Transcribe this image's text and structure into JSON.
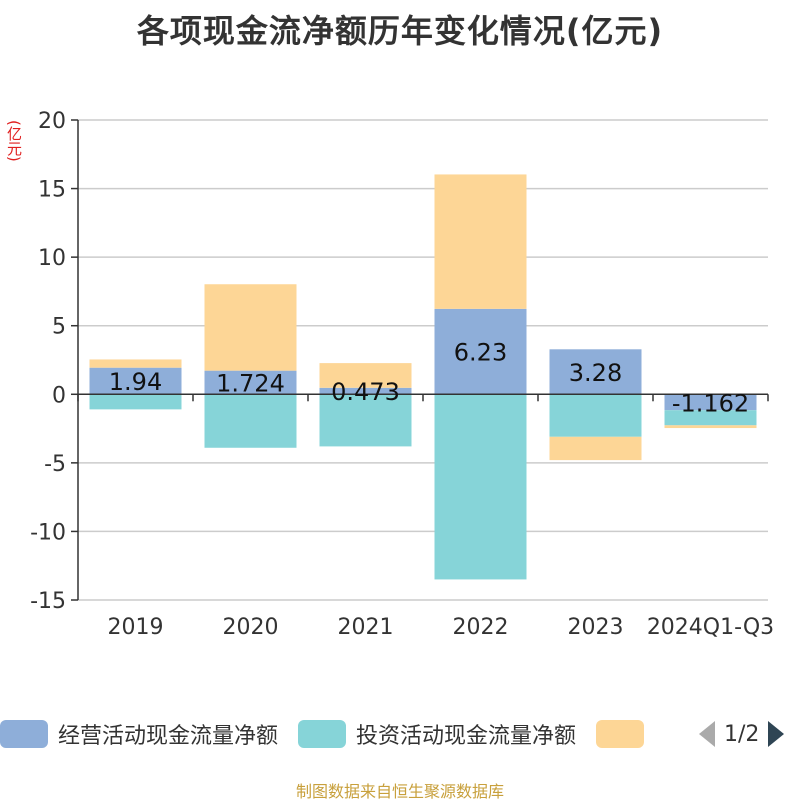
{
  "chart_data": {
    "type": "bar",
    "stacked": true,
    "title": "各项现金流净额历年变化情况(亿元)",
    "yunit": "(亿元)",
    "categories": [
      "2019",
      "2020",
      "2021",
      "2022",
      "2023",
      "2024Q1-Q3"
    ],
    "ylim": [
      -15,
      20
    ],
    "yticks": [
      -15,
      -10,
      -5,
      0,
      5,
      10,
      15,
      20
    ],
    "grid": true,
    "series": [
      {
        "name": "经营活动现金流量净额",
        "color": "#8eaed9",
        "values": [
          1.94,
          1.724,
          0.473,
          6.23,
          3.28,
          -1.162
        ],
        "labels": [
          "1.94",
          "1.724",
          "0.473",
          "6.23",
          "3.28",
          "-1.162"
        ]
      },
      {
        "name": "投资活动现金流量净额",
        "color": "#86d4d8",
        "values": [
          -1.1,
          -3.9,
          -3.8,
          -13.5,
          -3.1,
          -1.1
        ]
      },
      {
        "color": "#fdd696",
        "values": [
          0.6,
          6.3,
          1.8,
          9.8,
          -1.7,
          -0.2
        ]
      }
    ],
    "legend_position": "bottom"
  },
  "legend": {
    "items": [
      {
        "label": "经营活动现金流量净额",
        "color": "#8eaed9"
      },
      {
        "label": "投资活动现金流量净额",
        "color": "#86d4d8"
      },
      {
        "label": "",
        "color": "#fdd696"
      }
    ],
    "pager": "1/2",
    "prev_icon": "triangle-left-icon",
    "next_icon": "triangle-right-icon"
  },
  "source": "制图数据来自恒生聚源数据库"
}
